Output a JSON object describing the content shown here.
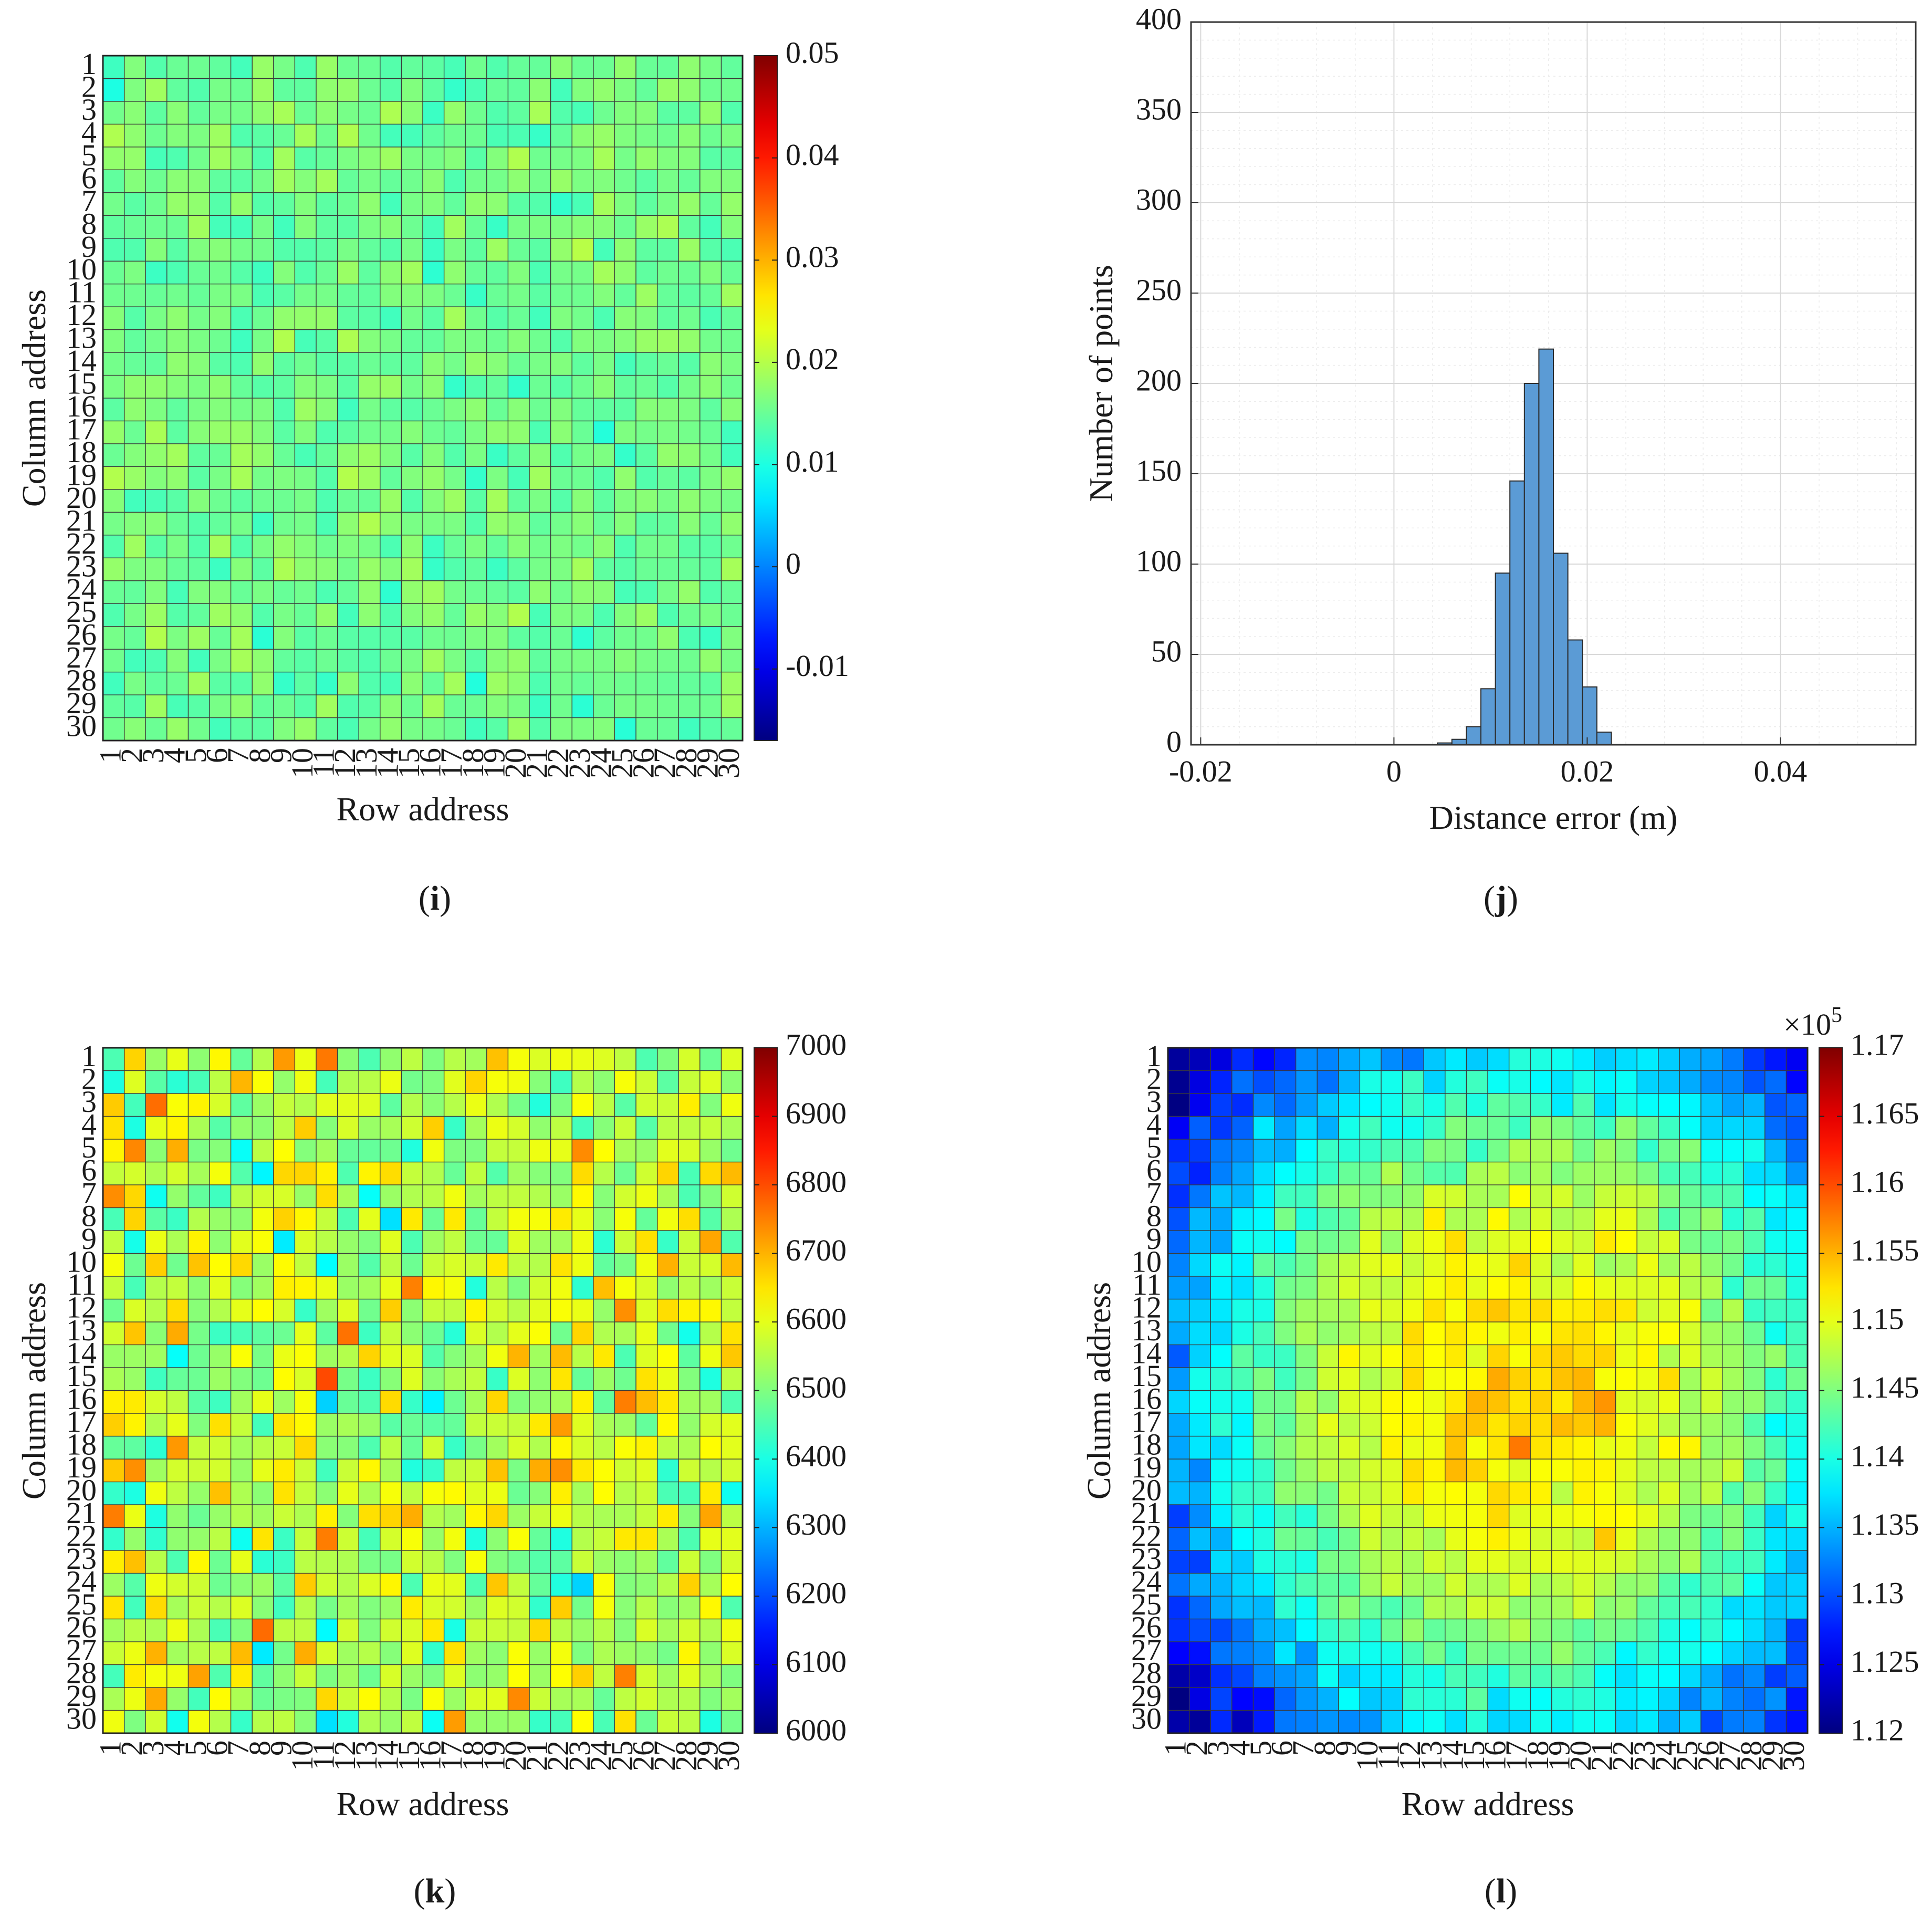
{
  "figure": {
    "kind": "multi-panel scientific figure"
  },
  "chart_data": [
    {
      "panel": "i",
      "panel_label": "(i)",
      "type": "heatmap",
      "xlabel": "Row address",
      "ylabel": "Column address",
      "rows": 30,
      "cols": 30,
      "x_ticks": [
        "1",
        "2",
        "3",
        "4",
        "5",
        "6",
        "7",
        "8",
        "9",
        "10",
        "11",
        "12",
        "13",
        "14",
        "15",
        "16",
        "17",
        "18",
        "19",
        "20",
        "21",
        "22",
        "23",
        "24",
        "25",
        "26",
        "27",
        "28",
        "29",
        "30"
      ],
      "y_ticks": [
        "1",
        "2",
        "3",
        "4",
        "5",
        "6",
        "7",
        "8",
        "9",
        "10",
        "11",
        "12",
        "13",
        "14",
        "15",
        "16",
        "17",
        "18",
        "19",
        "20",
        "21",
        "22",
        "23",
        "24",
        "25",
        "26",
        "27",
        "28",
        "29",
        "30"
      ],
      "colormap": "jet",
      "clim": [
        -0.017,
        0.05
      ],
      "colorbar_ticks": [
        -0.01,
        0,
        0.01,
        0.02,
        0.03,
        0.04,
        0.05
      ],
      "colorbar_tick_labels": [
        "-0.01",
        "0",
        "0.01",
        "0.02",
        "0.03",
        "0.04",
        "0.05"
      ],
      "colorbar_exponent": "",
      "value_summary": "values roughly 0.008-0.026 (mean ~0.015), no spatial pattern",
      "gen": {
        "mode": "noise",
        "base": 0.0155,
        "amp": 0.0065,
        "seed": 11
      }
    },
    {
      "panel": "j",
      "panel_label": "(j)",
      "type": "bar",
      "subtype": "histogram",
      "xlabel": "Distance error (m)",
      "ylabel": "Number of points",
      "xlim": [
        -0.021,
        0.054
      ],
      "ylim": [
        0,
        400
      ],
      "x_ticks": [
        -0.02,
        0,
        0.02,
        0.04
      ],
      "x_tick_labels": [
        "-0.02",
        "0",
        "0.02",
        "0.04"
      ],
      "y_ticks": [
        0,
        50,
        100,
        150,
        200,
        250,
        300,
        350,
        400
      ],
      "y_tick_labels": [
        "0",
        "50",
        "100",
        "150",
        "200",
        "250",
        "300",
        "350",
        "400"
      ],
      "grid": true,
      "bin_width": 0.0015,
      "bin_edges": [
        0.0045,
        0.006,
        0.0075,
        0.009,
        0.0105,
        0.012,
        0.0135,
        0.015,
        0.0165,
        0.018,
        0.0195,
        0.021,
        0.0225,
        0.024
      ],
      "counts": [
        1,
        3,
        10,
        31,
        95,
        146,
        200,
        219,
        106,
        58,
        32,
        7,
        0
      ],
      "bar_color": "#5b9bd5"
    },
    {
      "panel": "k",
      "panel_label": "(k)",
      "type": "heatmap",
      "xlabel": "Row address",
      "ylabel": "Column address",
      "rows": 30,
      "cols": 30,
      "x_ticks": [
        "1",
        "2",
        "3",
        "4",
        "5",
        "6",
        "7",
        "8",
        "9",
        "10",
        "11",
        "12",
        "13",
        "14",
        "15",
        "16",
        "17",
        "18",
        "19",
        "20",
        "21",
        "22",
        "23",
        "24",
        "25",
        "26",
        "27",
        "28",
        "29",
        "30"
      ],
      "y_ticks": [
        "1",
        "2",
        "3",
        "4",
        "5",
        "6",
        "7",
        "8",
        "9",
        "10",
        "11",
        "12",
        "13",
        "14",
        "15",
        "16",
        "17",
        "18",
        "19",
        "20",
        "21",
        "22",
        "23",
        "24",
        "25",
        "26",
        "27",
        "28",
        "29",
        "30"
      ],
      "colormap": "jet",
      "clim": [
        6000,
        7000
      ],
      "colorbar_ticks": [
        6000,
        6100,
        6200,
        6300,
        6400,
        6500,
        6600,
        6700,
        6800,
        6900,
        7000
      ],
      "colorbar_tick_labels": [
        "6000",
        "6100",
        "6200",
        "6300",
        "6400",
        "6500",
        "6600",
        "6700",
        "6800",
        "6900",
        "7000"
      ],
      "colorbar_exponent": "",
      "value_summary": "values roughly 6250-6850 (mean ~6560), random speckle",
      "gen": {
        "mode": "noise",
        "base": 6560,
        "amp": 290,
        "seed": 47
      }
    },
    {
      "panel": "l",
      "panel_label": "(l)",
      "type": "heatmap",
      "xlabel": "Row address",
      "ylabel": "Column address",
      "rows": 30,
      "cols": 30,
      "x_ticks": [
        "1",
        "2",
        "3",
        "4",
        "5",
        "6",
        "7",
        "8",
        "9",
        "10",
        "11",
        "12",
        "13",
        "14",
        "15",
        "16",
        "17",
        "18",
        "19",
        "20",
        "21",
        "22",
        "23",
        "24",
        "25",
        "26",
        "27",
        "28",
        "29",
        "30"
      ],
      "y_ticks": [
        "1",
        "2",
        "3",
        "4",
        "5",
        "6",
        "7",
        "8",
        "9",
        "10",
        "11",
        "12",
        "13",
        "14",
        "15",
        "16",
        "17",
        "18",
        "19",
        "20",
        "21",
        "22",
        "23",
        "24",
        "25",
        "26",
        "27",
        "28",
        "29",
        "30"
      ],
      "colormap": "jet",
      "clim": [
        1.12,
        1.17
      ],
      "colorbar_ticks": [
        1.12,
        1.125,
        1.13,
        1.135,
        1.14,
        1.145,
        1.15,
        1.155,
        1.16,
        1.165,
        1.17
      ],
      "colorbar_tick_labels": [
        "1.12",
        "1.125",
        "1.13",
        "1.135",
        "1.14",
        "1.145",
        "1.15",
        "1.155",
        "1.16",
        "1.165",
        "1.17"
      ],
      "colorbar_exponent_base": "×10",
      "colorbar_exponent_power": "5",
      "value_summary": "radial pattern: ~1.152-1.16 (x1e5) at center (around row 18, column 16), falling to ~1.125-1.13 at corners",
      "gen": {
        "mode": "radial",
        "center_col": 17.0,
        "center_row": 15.5,
        "peak": 1.1535,
        "drop": 0.026,
        "noise": 0.0032,
        "seed": 83
      }
    }
  ]
}
